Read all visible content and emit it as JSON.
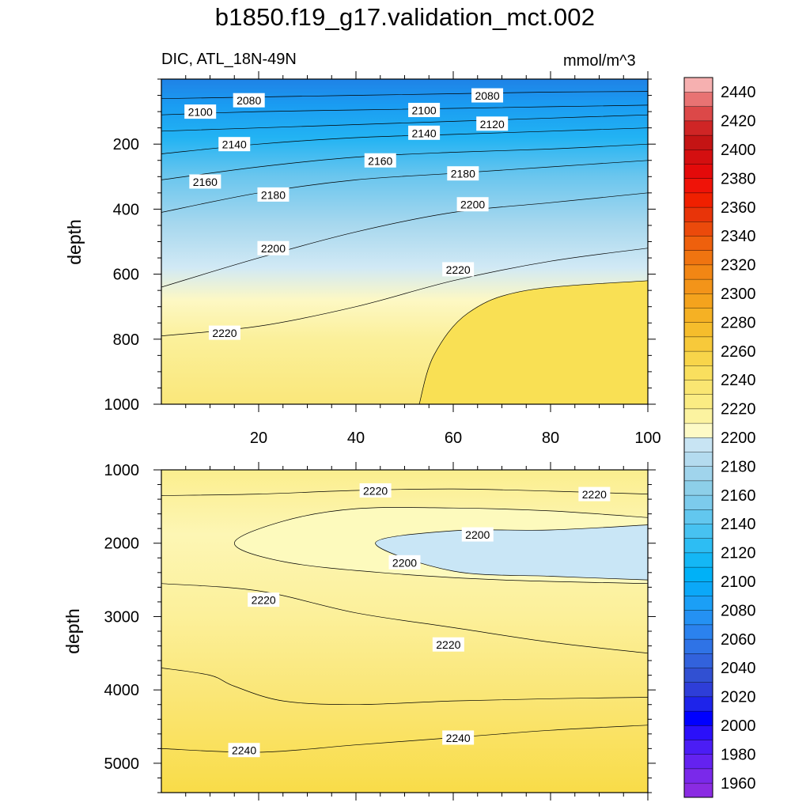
{
  "title": "b1850.f19_g17.validation_mct.002",
  "left_subtitle": "DIC, ATL_18N-49N",
  "right_subtitle": "mmol/m^3",
  "chart_data": [
    {
      "type": "contour",
      "panel": "upper",
      "xlabel": "",
      "ylabel": "depth",
      "units": "mmol/m^3",
      "xlim": [
        0,
        100
      ],
      "ylim": [
        0,
        1000
      ],
      "y_reversed": true,
      "x_ticks": [
        20,
        40,
        60,
        80,
        100
      ],
      "y_ticks": [
        200,
        400,
        600,
        800,
        1000
      ],
      "contour_interval": 10,
      "contour_labels": [
        {
          "value": "2100",
          "x": 8,
          "y": 100
        },
        {
          "value": "2080",
          "x": 18,
          "y": 65
        },
        {
          "value": "2100",
          "x": 54,
          "y": 95
        },
        {
          "value": "2080",
          "x": 67,
          "y": 50
        },
        {
          "value": "2120",
          "x": 68,
          "y": 137
        },
        {
          "value": "2140",
          "x": 15,
          "y": 200
        },
        {
          "value": "2140",
          "x": 54,
          "y": 165
        },
        {
          "value": "2160",
          "x": 45,
          "y": 250
        },
        {
          "value": "2160",
          "x": 9,
          "y": 315
        },
        {
          "value": "2180",
          "x": 23,
          "y": 355
        },
        {
          "value": "2180",
          "x": 62,
          "y": 290
        },
        {
          "value": "2200",
          "x": 64,
          "y": 385
        },
        {
          "value": "2200",
          "x": 23,
          "y": 520
        },
        {
          "value": "2220",
          "x": 61,
          "y": 585
        },
        {
          "value": "2220",
          "x": 13,
          "y": 780
        }
      ],
      "contour_lines": [
        {
          "level": 2080,
          "x": [
            0,
            20,
            40,
            60,
            80,
            100
          ],
          "y": [
            60,
            55,
            50,
            45,
            40,
            38
          ]
        },
        {
          "level": 2100,
          "x": [
            0,
            20,
            40,
            60,
            80,
            100
          ],
          "y": [
            110,
            100,
            95,
            90,
            85,
            80
          ]
        },
        {
          "level": 2120,
          "x": [
            0,
            20,
            40,
            60,
            80,
            100
          ],
          "y": [
            160,
            150,
            140,
            130,
            120,
            110
          ]
        },
        {
          "level": 2140,
          "x": [
            0,
            20,
            40,
            60,
            80,
            100
          ],
          "y": [
            230,
            200,
            180,
            170,
            160,
            150
          ]
        },
        {
          "level": 2160,
          "x": [
            0,
            20,
            40,
            60,
            80,
            100
          ],
          "y": [
            310,
            270,
            240,
            225,
            215,
            200
          ]
        },
        {
          "level": 2180,
          "x": [
            0,
            20,
            40,
            60,
            80,
            100
          ],
          "y": [
            410,
            350,
            310,
            290,
            270,
            250
          ]
        },
        {
          "level": 2200,
          "x": [
            0,
            20,
            40,
            60,
            80,
            100
          ],
          "y": [
            640,
            550,
            470,
            410,
            380,
            350
          ]
        },
        {
          "level": 2220,
          "x": [
            0,
            20,
            40,
            60,
            80,
            100
          ],
          "y": [
            790,
            760,
            700,
            620,
            560,
            520
          ]
        },
        {
          "level": 2230,
          "x": [
            53,
            56,
            63,
            75,
            100
          ],
          "y": [
            1000,
            850,
            720,
            650,
            620
          ]
        }
      ]
    },
    {
      "type": "contour",
      "panel": "lower",
      "xlabel": "",
      "ylabel": "depth",
      "units": "mmol/m^3",
      "xlim": [
        0,
        100
      ],
      "ylim": [
        1000,
        5400
      ],
      "y_reversed": true,
      "x_ticks": [
        20,
        40,
        60,
        80,
        100
      ],
      "y_ticks": [
        1000,
        2000,
        3000,
        4000,
        5000
      ],
      "contour_interval": 10,
      "contour_labels": [
        {
          "value": "2220",
          "x": 44,
          "y": 1280
        },
        {
          "value": "2220",
          "x": 89,
          "y": 1330
        },
        {
          "value": "2200",
          "x": 65,
          "y": 1880
        },
        {
          "value": "2200",
          "x": 50,
          "y": 2260
        },
        {
          "value": "2220",
          "x": 21,
          "y": 2770
        },
        {
          "value": "2220",
          "x": 59,
          "y": 3380
        },
        {
          "value": "2240",
          "x": 17,
          "y": 4820
        },
        {
          "value": "2240",
          "x": 61,
          "y": 4650
        }
      ],
      "contour_lines": [
        {
          "level": 2210,
          "x": [
            100,
            80,
            60,
            40,
            25,
            15,
            25,
            45,
            70,
            100
          ],
          "y": [
            1650,
            1560,
            1520,
            1530,
            1700,
            2000,
            2250,
            2400,
            2500,
            2550
          ]
        },
        {
          "level": 2200,
          "x": [
            100,
            80,
            60,
            44,
            60,
            80,
            100
          ],
          "y": [
            1750,
            1820,
            1830,
            2000,
            2380,
            2450,
            2500
          ]
        },
        {
          "level": 2220,
          "x": [
            0,
            20,
            40,
            60,
            80,
            100
          ],
          "y": [
            1350,
            1330,
            1280,
            1260,
            1290,
            1330
          ]
        },
        {
          "level": 2230,
          "x": [
            0,
            20,
            40,
            60,
            80,
            100
          ],
          "y": [
            2550,
            2650,
            2950,
            3150,
            3350,
            3500
          ]
        },
        {
          "level": 2240,
          "x": [
            0,
            10,
            15,
            25,
            40,
            60,
            80,
            100
          ],
          "y": [
            3700,
            3800,
            3950,
            4150,
            4200,
            4150,
            4120,
            4100
          ]
        },
        {
          "level": 2250,
          "x": [
            0,
            20,
            40,
            60,
            80,
            100
          ],
          "y": [
            4800,
            4850,
            4750,
            4650,
            4550,
            4480
          ]
        }
      ]
    }
  ],
  "colorbar": {
    "levels": [
      1960,
      1980,
      2000,
      2020,
      2040,
      2060,
      2080,
      2100,
      2120,
      2140,
      2160,
      2180,
      2200,
      2220,
      2240,
      2260,
      2280,
      2300,
      2320,
      2340,
      2360,
      2380,
      2400,
      2420,
      2440
    ],
    "colors": [
      "#8a2be2",
      "#7a29ea",
      "#6422f0",
      "#4b1df5",
      "#2b10fa",
      "#0000ff",
      "#1e24ea",
      "#2e3ed8",
      "#3150d2",
      "#3262dc",
      "#2f73e6",
      "#2b82ee",
      "#2491f3",
      "#1b9ff6",
      "#0ba8f8",
      "#00b1f7",
      "#14b7f5",
      "#2dbdf3",
      "#47c2f1",
      "#62c7ef",
      "#7ccbec",
      "#8dcfe9",
      "#a0d4ec",
      "#b4dbef",
      "#c8e4f3",
      "#fdfac6",
      "#fcf3a0",
      "#fbec83",
      "#fae672",
      "#f9df5e",
      "#f8d54a",
      "#f7c93a",
      "#f6bd2c",
      "#f5b124",
      "#f4a31d",
      "#f39419",
      "#f28614",
      "#f07410",
      "#ee600d",
      "#eb4a0b",
      "#e83409",
      "#f02000",
      "#ef1308",
      "#e40a0a",
      "#d40f10",
      "#c41414",
      "#cf2525",
      "#dc4848",
      "#e87373",
      "#f6b0b0"
    ]
  }
}
